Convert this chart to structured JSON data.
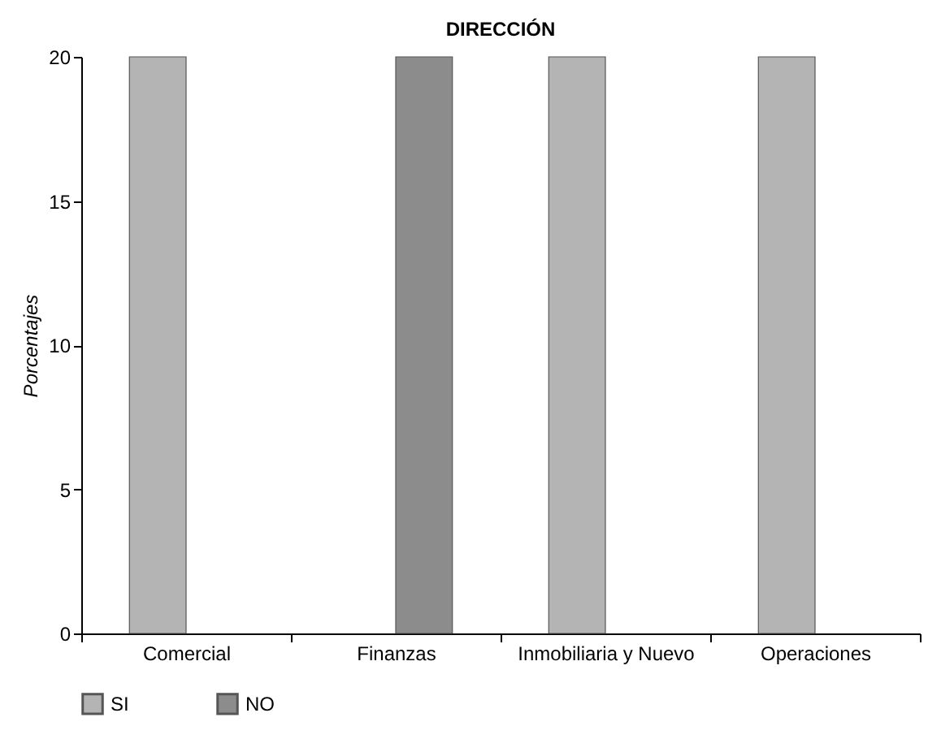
{
  "chart_data": {
    "type": "bar",
    "title": "DIRECCIÓN",
    "ylabel": "Porcentajes",
    "categories": [
      "Comercial",
      "Finanzas",
      "Inmobiliaria y Nuevo",
      "Operaciones"
    ],
    "series": [
      {
        "name": "SI",
        "color": "#b4b4b4",
        "values": [
          20,
          null,
          20,
          20
        ]
      },
      {
        "name": "NO",
        "color": "#8c8c8c",
        "values": [
          null,
          20,
          null,
          null
        ]
      }
    ],
    "ylim": [
      0,
      20
    ],
    "yticks": [
      0,
      5,
      10,
      15,
      20
    ],
    "grid": false,
    "legend": "bottom"
  }
}
